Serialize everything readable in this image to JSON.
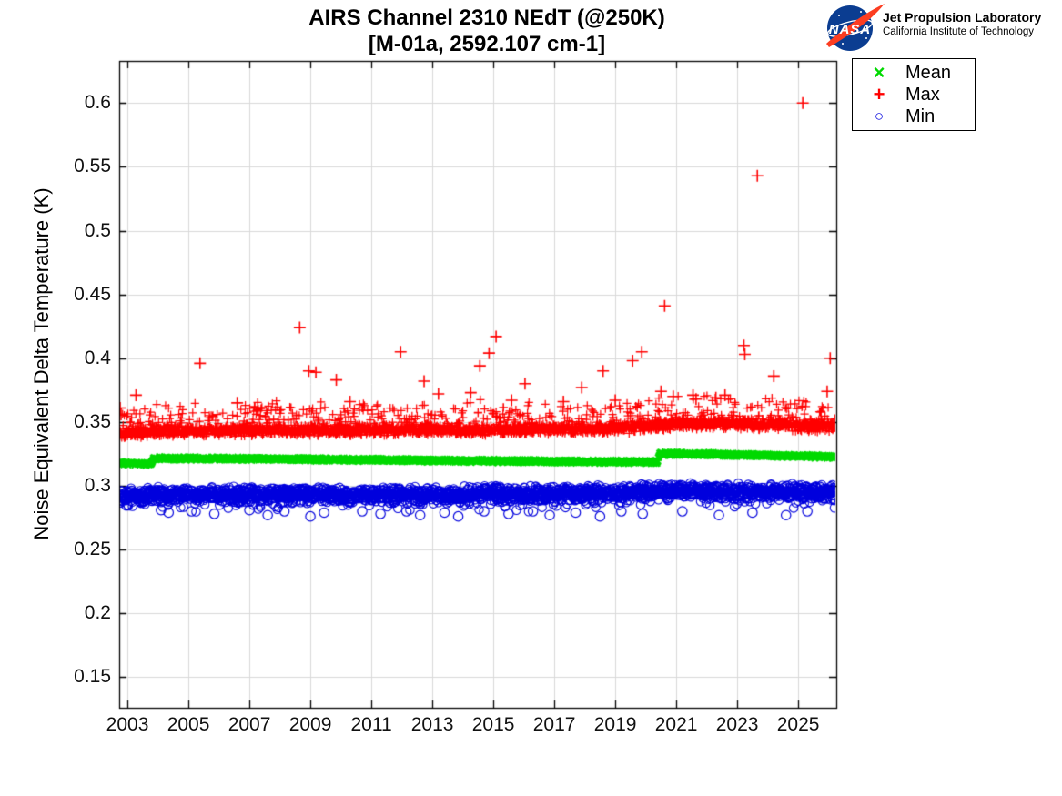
{
  "header": {
    "title_line1": "AIRS Channel 2310 NEdT (@250K)",
    "title_line2": "[M-01a, 2592.107 cm-1]",
    "logo": {
      "nasa_text": "NASA",
      "org": "Jet Propulsion Laboratory",
      "sub": "California Institute of Technology",
      "nasa_blue": "#0b3d91",
      "nasa_red": "#fc3d21"
    }
  },
  "chart_data": {
    "type": "scatter",
    "title": "AIRS Channel 2310 NEdT (@250K)",
    "subtitle": "[M-01a, 2592.107 cm-1]",
    "xlabel": "",
    "ylabel": "Noise Equivalent Delta Temperature (K)",
    "xlim": [
      2002.73,
      2026.25
    ],
    "ylim": [
      0.126,
      0.633
    ],
    "xticks": [
      2003,
      2005,
      2007,
      2009,
      2011,
      2013,
      2015,
      2017,
      2019,
      2021,
      2023,
      2025
    ],
    "yticks": [
      0.15,
      0.2,
      0.25,
      0.3,
      0.35,
      0.4,
      0.45,
      0.5,
      0.55,
      0.6
    ],
    "ytick_labels": [
      "0.15",
      "0.2",
      "0.25",
      "0.3",
      "0.35",
      "0.4",
      "0.45",
      "0.5",
      "0.55",
      "0.6"
    ],
    "grid": true,
    "legend_position": "outside-top-right",
    "legend_order": [
      "Mean",
      "Max",
      "Min"
    ],
    "series": [
      {
        "name": "Mean",
        "marker": "x",
        "legend_glyph": "×",
        "color": "#00d900",
        "n_points": 2600,
        "band": {
          "direction": "none",
          "half_width": 0.0016,
          "centers": [
            [
              2002.73,
              0.318
            ],
            [
              2003.78,
              0.3171
            ],
            [
              2003.84,
              0.3216
            ],
            [
              2008,
              0.321
            ],
            [
              2014,
              0.3196
            ],
            [
              2019,
              0.3188
            ],
            [
              2020.38,
              0.3186
            ],
            [
              2020.46,
              0.3252
            ],
            [
              2021.8,
              0.3248
            ],
            [
              2026.25,
              0.3226
            ]
          ]
        },
        "outliers": []
      },
      {
        "name": "Max",
        "marker": "+",
        "legend_glyph": "+",
        "color": "#ff0000",
        "n_points": 2600,
        "band": {
          "direction": "up",
          "half_width": 0.0048,
          "centers": [
            [
              2002.73,
              0.3405
            ],
            [
              2004,
              0.3425
            ],
            [
              2010,
              0.3435
            ],
            [
              2015,
              0.3437
            ],
            [
              2019,
              0.3447
            ],
            [
              2020.42,
              0.3475
            ],
            [
              2021.5,
              0.3487
            ],
            [
              2023.5,
              0.348
            ],
            [
              2026.25,
              0.3465
            ]
          ],
          "spike_prob": 0.32,
          "spike_scale": 0.02,
          "spike_max": 0.026
        },
        "outliers": [
          [
            2002.76,
            0.361
          ],
          [
            2002.79,
            0.356
          ],
          [
            2003.28,
            0.371
          ],
          [
            2005.38,
            0.396
          ],
          [
            2006.6,
            0.365
          ],
          [
            2008.65,
            0.424
          ],
          [
            2008.95,
            0.39
          ],
          [
            2009.18,
            0.389
          ],
          [
            2009.85,
            0.383
          ],
          [
            2010.3,
            0.366
          ],
          [
            2011.96,
            0.405
          ],
          [
            2012.73,
            0.382
          ],
          [
            2013.2,
            0.372
          ],
          [
            2014.26,
            0.373
          ],
          [
            2014.56,
            0.394
          ],
          [
            2014.86,
            0.404
          ],
          [
            2015.09,
            0.417
          ],
          [
            2015.6,
            0.367
          ],
          [
            2016.04,
            0.38
          ],
          [
            2017.3,
            0.366
          ],
          [
            2017.9,
            0.377
          ],
          [
            2018.6,
            0.39
          ],
          [
            2019.0,
            0.367
          ],
          [
            2019.57,
            0.398
          ],
          [
            2019.87,
            0.405
          ],
          [
            2020.5,
            0.374
          ],
          [
            2020.62,
            0.441
          ],
          [
            2020.9,
            0.37
          ],
          [
            2021.55,
            0.371
          ],
          [
            2021.65,
            0.368
          ],
          [
            2022.3,
            0.369
          ],
          [
            2022.6,
            0.371
          ],
          [
            2023.22,
            0.41
          ],
          [
            2023.25,
            0.403
          ],
          [
            2023.66,
            0.543
          ],
          [
            2024.2,
            0.386
          ],
          [
            2025.15,
            0.6
          ],
          [
            2025.95,
            0.374
          ],
          [
            2026.05,
            0.4
          ]
        ]
      },
      {
        "name": "Min",
        "marker": "o",
        "legend_glyph": "○",
        "color": "#0000dd",
        "n_points": 2600,
        "band": {
          "direction": "down",
          "half_width": 0.0068,
          "centers": [
            [
              2002.73,
              0.292
            ],
            [
              2004,
              0.293
            ],
            [
              2012,
              0.293
            ],
            [
              2019,
              0.2942
            ],
            [
              2020.42,
              0.296
            ],
            [
              2026.25,
              0.295
            ]
          ],
          "spike_prob": 0.2,
          "spike_scale": 0.009,
          "spike_max": 0.017
        },
        "outliers": [
          [
            2004.1,
            0.281
          ],
          [
            2004.35,
            0.279
          ],
          [
            2005.1,
            0.28
          ],
          [
            2005.85,
            0.278
          ],
          [
            2007.0,
            0.281
          ],
          [
            2007.6,
            0.277
          ],
          [
            2008.15,
            0.28
          ],
          [
            2009.0,
            0.276
          ],
          [
            2009.45,
            0.279
          ],
          [
            2010.7,
            0.28
          ],
          [
            2011.3,
            0.278
          ],
          [
            2012.15,
            0.28
          ],
          [
            2012.6,
            0.277
          ],
          [
            2013.4,
            0.279
          ],
          [
            2013.85,
            0.276
          ],
          [
            2014.7,
            0.28
          ],
          [
            2015.5,
            0.278
          ],
          [
            2016.3,
            0.28
          ],
          [
            2016.85,
            0.277
          ],
          [
            2017.7,
            0.279
          ],
          [
            2018.5,
            0.276
          ],
          [
            2019.2,
            0.28
          ],
          [
            2019.9,
            0.278
          ],
          [
            2021.2,
            0.28
          ],
          [
            2022.4,
            0.277
          ],
          [
            2023.5,
            0.279
          ],
          [
            2024.6,
            0.277
          ],
          [
            2025.3,
            0.28
          ]
        ]
      }
    ]
  }
}
